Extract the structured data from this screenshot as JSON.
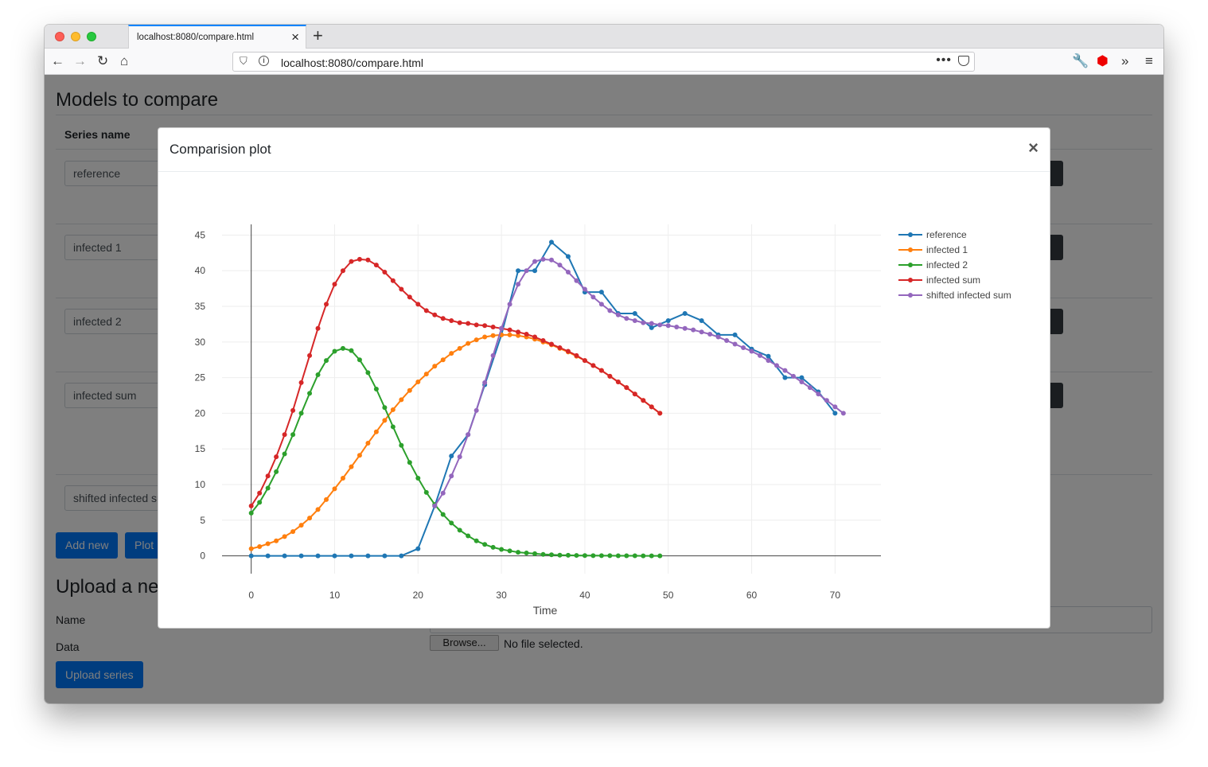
{
  "browser": {
    "tab_title": "localhost:8080/compare.html",
    "tab_close": "×",
    "new_tab": "+",
    "url": "localhost:8080/compare.html",
    "url_more": "•••"
  },
  "page": {
    "title": "Models to compare",
    "table_header_series": "Series name",
    "series_inputs": [
      "reference",
      "infected 1",
      "infected 2",
      "infected sum",
      "shifted infected sum"
    ],
    "add_new_label": "Add new",
    "plot_label": "Plot",
    "upload_title": "Upload a new series",
    "name_label": "Name",
    "data_label": "Data",
    "browse_label": "Browse...",
    "no_file_label": "No file selected.",
    "upload_button_label": "Upload series"
  },
  "modal": {
    "title": "Comparision plot",
    "close": "×"
  },
  "chart_data": {
    "type": "line",
    "title": "",
    "xlabel": "Time",
    "ylabel": "",
    "xlim": [
      -3.5,
      75.5
    ],
    "ylim": [
      -2.5,
      46.5
    ],
    "xticks": [
      0,
      10,
      20,
      30,
      40,
      50,
      60,
      70
    ],
    "yticks": [
      0,
      5,
      10,
      15,
      20,
      25,
      30,
      35,
      40,
      45
    ],
    "grid": true,
    "legend_position": "top-right",
    "series": [
      {
        "name": "reference",
        "color": "#1f77b4",
        "x": [
          0,
          2,
          4,
          6,
          8,
          10,
          12,
          14,
          16,
          18,
          20,
          22,
          24,
          26,
          28,
          30,
          32,
          34,
          36,
          38,
          40,
          42,
          44,
          46,
          48,
          50,
          52,
          54,
          56,
          58,
          60,
          62,
          64,
          66,
          68,
          70
        ],
        "y": [
          0,
          0,
          0,
          0,
          0,
          0,
          0,
          0,
          0,
          0,
          1,
          7,
          14,
          17,
          24,
          31,
          40,
          40,
          44,
          42,
          37,
          37,
          34,
          34,
          32,
          33,
          34,
          33,
          31,
          31,
          29,
          28,
          25,
          25,
          23,
          20
        ]
      },
      {
        "name": "infected 1",
        "color": "#ff7f0e",
        "x": [
          0,
          1,
          2,
          3,
          4,
          5,
          6,
          7,
          8,
          9,
          10,
          11,
          12,
          13,
          14,
          15,
          16,
          17,
          18,
          19,
          20,
          21,
          22,
          23,
          24,
          25,
          26,
          27,
          28,
          29,
          30,
          31,
          32,
          33,
          34,
          35,
          36,
          37,
          38,
          39,
          40,
          41,
          42,
          43,
          44,
          45,
          46,
          47,
          48,
          49
        ],
        "y": [
          1,
          1.3,
          1.7,
          2.1,
          2.7,
          3.4,
          4.3,
          5.3,
          6.5,
          7.9,
          9.4,
          10.9,
          12.5,
          14.1,
          15.8,
          17.4,
          19.0,
          20.5,
          21.9,
          23.2,
          24.4,
          25.5,
          26.6,
          27.5,
          28.4,
          29.1,
          29.8,
          30.3,
          30.7,
          30.9,
          31.0,
          31.0,
          30.9,
          30.7,
          30.4,
          30.0,
          29.6,
          29.1,
          28.6,
          28.0,
          27.4,
          26.7,
          26.0,
          25.2,
          24.4,
          23.6,
          22.7,
          21.8,
          20.9,
          20.0
        ]
      },
      {
        "name": "infected 2",
        "color": "#2ca02c",
        "x": [
          0,
          1,
          2,
          3,
          4,
          5,
          6,
          7,
          8,
          9,
          10,
          11,
          12,
          13,
          14,
          15,
          16,
          17,
          18,
          19,
          20,
          21,
          22,
          23,
          24,
          25,
          26,
          27,
          28,
          29,
          30,
          31,
          32,
          33,
          34,
          35,
          36,
          37,
          38,
          39,
          40,
          41,
          42,
          43,
          44,
          45,
          46,
          47,
          48,
          49
        ],
        "y": [
          6,
          7.5,
          9.5,
          11.8,
          14.3,
          17.0,
          20.0,
          22.8,
          25.4,
          27.4,
          28.7,
          29.1,
          28.8,
          27.5,
          25.7,
          23.4,
          20.8,
          18.1,
          15.5,
          13.1,
          10.9,
          8.9,
          7.2,
          5.8,
          4.6,
          3.6,
          2.8,
          2.1,
          1.6,
          1.2,
          0.9,
          0.7,
          0.5,
          0.4,
          0.3,
          0.2,
          0.15,
          0.1,
          0.08,
          0.06,
          0.04,
          0.03,
          0.02,
          0.02,
          0.01,
          0.01,
          0.01,
          0,
          0,
          0
        ]
      },
      {
        "name": "infected sum",
        "color": "#d62728",
        "x": [
          0,
          1,
          2,
          3,
          4,
          5,
          6,
          7,
          8,
          9,
          10,
          11,
          12,
          13,
          14,
          15,
          16,
          17,
          18,
          19,
          20,
          21,
          22,
          23,
          24,
          25,
          26,
          27,
          28,
          29,
          30,
          31,
          32,
          33,
          34,
          35,
          36,
          37,
          38,
          39,
          40,
          41,
          42,
          43,
          44,
          45,
          46,
          47,
          48,
          49
        ],
        "y": [
          7,
          8.8,
          11.2,
          13.9,
          17.0,
          20.4,
          24.3,
          28.1,
          31.9,
          35.3,
          38.1,
          40.0,
          41.3,
          41.6,
          41.5,
          40.8,
          39.8,
          38.6,
          37.4,
          36.3,
          35.3,
          34.4,
          33.8,
          33.3,
          33.0,
          32.7,
          32.6,
          32.4,
          32.3,
          32.1,
          31.9,
          31.7,
          31.4,
          31.1,
          30.7,
          30.2,
          29.7,
          29.2,
          28.7,
          28.1,
          27.4,
          26.7,
          26.0,
          25.2,
          24.4,
          23.6,
          22.7,
          21.8,
          20.9,
          20.0
        ]
      },
      {
        "name": "shifted infected sum",
        "color": "#9467bd",
        "x": [
          22,
          23,
          24,
          25,
          26,
          27,
          28,
          29,
          30,
          31,
          32,
          33,
          34,
          35,
          36,
          37,
          38,
          39,
          40,
          41,
          42,
          43,
          44,
          45,
          46,
          47,
          48,
          49,
          50,
          51,
          52,
          53,
          54,
          55,
          56,
          57,
          58,
          59,
          60,
          61,
          62,
          63,
          64,
          65,
          66,
          67,
          68,
          69,
          70,
          71
        ],
        "y": [
          7,
          8.8,
          11.2,
          13.9,
          17.0,
          20.4,
          24.3,
          28.1,
          31.9,
          35.3,
          38.1,
          40.0,
          41.3,
          41.6,
          41.5,
          40.8,
          39.8,
          38.6,
          37.4,
          36.3,
          35.3,
          34.4,
          33.8,
          33.3,
          33.0,
          32.7,
          32.6,
          32.4,
          32.3,
          32.1,
          31.9,
          31.7,
          31.4,
          31.1,
          30.7,
          30.2,
          29.7,
          29.2,
          28.7,
          28.1,
          27.4,
          26.7,
          26.0,
          25.2,
          24.4,
          23.6,
          22.7,
          21.8,
          20.9,
          20.0
        ]
      }
    ]
  }
}
